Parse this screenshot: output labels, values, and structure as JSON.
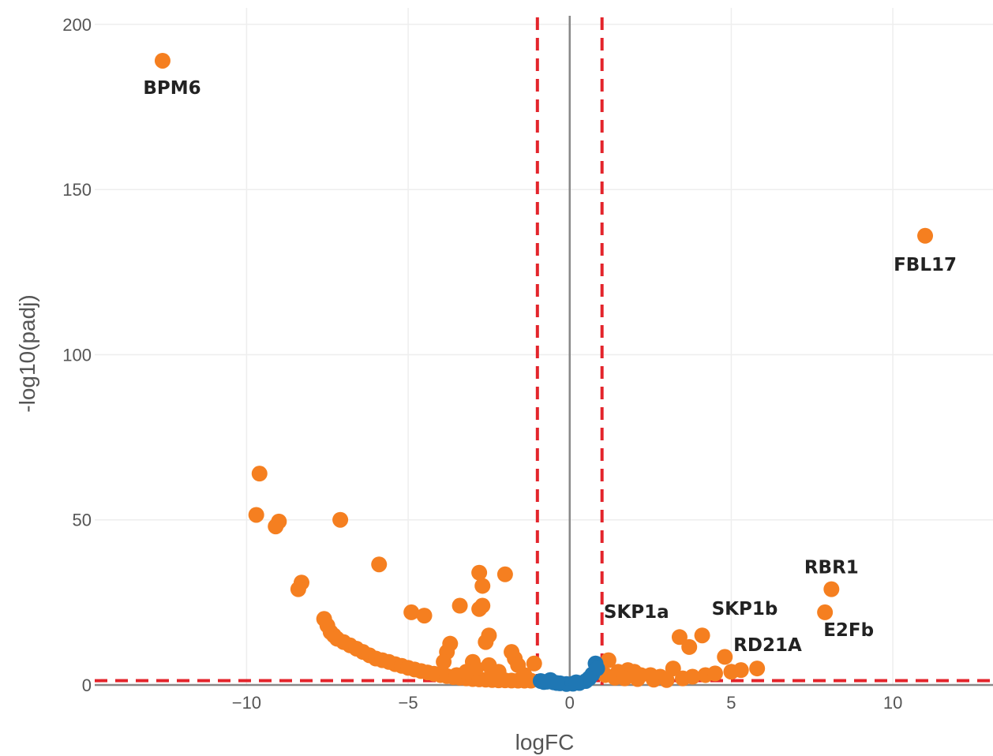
{
  "chart_data": {
    "type": "scatter",
    "title": "",
    "xlabel": "logFC",
    "ylabel": "-log10(padj)",
    "xlim": [
      -14.7,
      13.1
    ],
    "ylim": [
      0,
      205
    ],
    "grid": true,
    "x_ticks": [
      -10,
      -5,
      0,
      5,
      10
    ],
    "x_tick_labels": [
      "−10",
      "−5",
      "0",
      "5",
      "10"
    ],
    "y_ticks": [
      0,
      50,
      100,
      150,
      200
    ],
    "y_tick_labels": [
      "0",
      "50",
      "100",
      "150",
      "200"
    ],
    "colors": {
      "significant": "#f57f20",
      "not_significant": "#1f77b4",
      "threshold": "#e3242b",
      "zero_line": "#888888",
      "grid": "#eeeeee"
    },
    "thresholds": {
      "logfc": [
        -1,
        1
      ],
      "neg_log10_padj": 1.3
    },
    "labeled_points": [
      {
        "label": "BPM6",
        "x": -12.6,
        "y": 189
      },
      {
        "label": "FBL17",
        "x": 11.0,
        "y": 136
      },
      {
        "label": "RBR1",
        "x": 8.1,
        "y": 29
      },
      {
        "label": "E2Fb",
        "x": 7.9,
        "y": 22
      },
      {
        "label": "SKP1a",
        "x": 3.4,
        "y": 15
      },
      {
        "label": "SKP1b",
        "x": 4.1,
        "y": 15
      },
      {
        "label": "RD21A",
        "x": 5.8,
        "y": 5
      }
    ],
    "series": [
      {
        "color_key": "significant",
        "points": [
          [
            -9.6,
            64
          ],
          [
            -9.7,
            51.5
          ],
          [
            -9.0,
            49.5
          ],
          [
            -9.1,
            48
          ],
          [
            -7.1,
            50
          ],
          [
            -5.9,
            36.5
          ],
          [
            -8.3,
            31
          ],
          [
            -8.4,
            29
          ],
          [
            -7.6,
            20
          ],
          [
            -7.5,
            18
          ],
          [
            -7.4,
            16
          ],
          [
            -7.3,
            15
          ],
          [
            -7.2,
            14
          ],
          [
            -7.0,
            13
          ],
          [
            -6.8,
            12
          ],
          [
            -6.6,
            11
          ],
          [
            -6.4,
            10
          ],
          [
            -6.2,
            9
          ],
          [
            -6.0,
            8
          ],
          [
            -5.8,
            7.5
          ],
          [
            -5.6,
            7
          ],
          [
            -5.4,
            6.3
          ],
          [
            -5.2,
            5.8
          ],
          [
            -5.0,
            5.2
          ],
          [
            -4.8,
            4.7
          ],
          [
            -4.6,
            4.2
          ],
          [
            -4.4,
            3.8
          ],
          [
            -4.2,
            3.4
          ],
          [
            -4.0,
            3.0
          ],
          [
            -3.8,
            2.7
          ],
          [
            -3.6,
            2.4
          ],
          [
            -3.4,
            2.2
          ],
          [
            -3.2,
            2.0
          ],
          [
            -3.0,
            1.8
          ],
          [
            -2.8,
            1.7
          ],
          [
            -2.6,
            1.6
          ],
          [
            -2.4,
            1.5
          ],
          [
            -2.2,
            1.4
          ],
          [
            -2.0,
            1.4
          ],
          [
            -1.8,
            1.35
          ],
          [
            -1.6,
            1.3
          ],
          [
            -1.4,
            1.3
          ],
          [
            -1.2,
            1.3
          ],
          [
            -4.9,
            22
          ],
          [
            -4.5,
            21
          ],
          [
            -3.4,
            24
          ],
          [
            -2.8,
            34
          ],
          [
            -2.7,
            30
          ],
          [
            -2.8,
            23
          ],
          [
            -2.7,
            24
          ],
          [
            -2.0,
            33.5
          ],
          [
            -2.5,
            15
          ],
          [
            -2.6,
            13
          ],
          [
            -3.7,
            12.5
          ],
          [
            -3.8,
            10
          ],
          [
            -3.9,
            7
          ],
          [
            -3.5,
            3
          ],
          [
            -3.0,
            7
          ],
          [
            -2.9,
            5
          ],
          [
            -2.5,
            6
          ],
          [
            -1.8,
            10
          ],
          [
            -1.7,
            8
          ],
          [
            -1.6,
            6
          ],
          [
            -1.4,
            3
          ],
          [
            -1.1,
            6.5
          ],
          [
            -2.2,
            4
          ],
          [
            -2.4,
            3
          ],
          [
            -3.2,
            4
          ],
          [
            1.2,
            7.5
          ],
          [
            1.5,
            4
          ],
          [
            1.8,
            4.5
          ],
          [
            2.0,
            4.0
          ],
          [
            2.2,
            3
          ],
          [
            2.5,
            3
          ],
          [
            2.8,
            2.5
          ],
          [
            3.2,
            5
          ],
          [
            3.5,
            2
          ],
          [
            3.8,
            2.5
          ],
          [
            4.2,
            3
          ],
          [
            4.5,
            3.5
          ],
          [
            5.0,
            4
          ],
          [
            5.3,
            4.5
          ],
          [
            1.1,
            3
          ],
          [
            1.4,
            2.2
          ],
          [
            1.7,
            2
          ],
          [
            2.1,
            1.8
          ],
          [
            2.6,
            1.6
          ],
          [
            3.0,
            1.5
          ],
          [
            4.8,
            8.5
          ],
          [
            3.4,
            14.5
          ],
          [
            3.7,
            11.5
          ],
          [
            4.1,
            15
          ],
          [
            5.8,
            5
          ],
          [
            7.9,
            22
          ],
          [
            8.1,
            29
          ],
          [
            11.0,
            136
          ],
          [
            -12.6,
            189
          ]
        ]
      },
      {
        "color_key": "not_significant",
        "points": [
          [
            -0.9,
            1.2
          ],
          [
            -0.7,
            1.0
          ],
          [
            -0.5,
            0.8
          ],
          [
            -0.3,
            0.5
          ],
          [
            -0.1,
            0.3
          ],
          [
            0.1,
            0.4
          ],
          [
            0.3,
            0.6
          ],
          [
            0.5,
            1.2
          ],
          [
            0.7,
            3.2
          ],
          [
            0.8,
            6.5
          ],
          [
            0.85,
            5
          ],
          [
            0.6,
            2
          ],
          [
            -0.6,
            1.5
          ],
          [
            -0.8,
            0.9
          ],
          [
            0.2,
            0.8
          ],
          [
            -0.4,
            0.6
          ]
        ]
      }
    ]
  }
}
